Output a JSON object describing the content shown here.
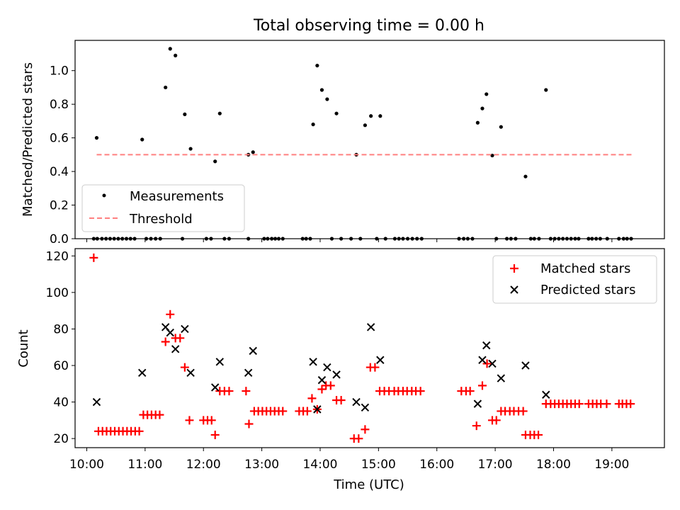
{
  "figure": {
    "title": "Total observing time = 0.00 h"
  },
  "chart_data": [
    {
      "type": "scatter",
      "ylabel": "Matched/Predicted stars",
      "xlim": [
        9.8,
        19.9
      ],
      "ylim": [
        0,
        1.18
      ],
      "yticks": [
        0.0,
        0.2,
        0.4,
        0.6,
        0.8,
        1.0
      ],
      "ytick_labels": [
        "0.0",
        "0.2",
        "0.4",
        "0.6",
        "0.8",
        "1.0"
      ],
      "grid": false,
      "legend": {
        "placement": "lower-left",
        "entries": [
          "Measurements",
          "Threshold"
        ]
      },
      "series": [
        {
          "name": "Measurements",
          "marker": "dot",
          "color": "#000000",
          "points": [
            [
              10.17,
              0.6
            ],
            [
              10.95,
              0.59
            ],
            [
              11.35,
              0.9
            ],
            [
              11.43,
              1.13
            ],
            [
              11.52,
              1.09
            ],
            [
              11.68,
              0.74
            ],
            [
              11.78,
              0.535
            ],
            [
              12.2,
              0.46
            ],
            [
              12.28,
              0.745
            ],
            [
              12.77,
              0.5
            ],
            [
              12.85,
              0.515
            ],
            [
              13.88,
              0.68
            ],
            [
              13.95,
              1.03
            ],
            [
              14.03,
              0.885
            ],
            [
              14.12,
              0.83
            ],
            [
              14.28,
              0.745
            ],
            [
              14.62,
              0.5
            ],
            [
              14.77,
              0.675
            ],
            [
              14.87,
              0.73
            ],
            [
              15.03,
              0.73
            ],
            [
              16.7,
              0.69
            ],
            [
              16.78,
              0.775
            ],
            [
              16.85,
              0.86
            ],
            [
              16.95,
              0.495
            ],
            [
              17.1,
              0.665
            ],
            [
              17.52,
              0.37
            ],
            [
              17.87,
              0.885
            ],
            [
              10.12,
              0
            ],
            [
              10.18,
              0
            ],
            [
              10.26,
              0
            ],
            [
              10.33,
              0
            ],
            [
              10.4,
              0
            ],
            [
              10.47,
              0
            ],
            [
              10.54,
              0
            ],
            [
              10.61,
              0
            ],
            [
              10.68,
              0
            ],
            [
              10.75,
              0
            ],
            [
              10.82,
              0
            ],
            [
              11.02,
              0
            ],
            [
              11.1,
              0
            ],
            [
              11.18,
              0
            ],
            [
              11.26,
              0
            ],
            [
              11.64,
              0
            ],
            [
              12.05,
              0
            ],
            [
              12.13,
              0
            ],
            [
              12.36,
              0
            ],
            [
              12.44,
              0
            ],
            [
              12.77,
              0
            ],
            [
              13.04,
              0
            ],
            [
              13.1,
              0
            ],
            [
              13.17,
              0
            ],
            [
              13.23,
              0
            ],
            [
              13.29,
              0
            ],
            [
              13.36,
              0
            ],
            [
              13.7,
              0
            ],
            [
              13.76,
              0
            ],
            [
              13.83,
              0
            ],
            [
              14.2,
              0
            ],
            [
              14.36,
              0
            ],
            [
              14.53,
              0
            ],
            [
              14.69,
              0
            ],
            [
              14.97,
              0
            ],
            [
              15.12,
              0
            ],
            [
              15.28,
              0
            ],
            [
              15.35,
              0
            ],
            [
              15.42,
              0
            ],
            [
              15.5,
              0
            ],
            [
              15.58,
              0
            ],
            [
              15.66,
              0
            ],
            [
              15.74,
              0
            ],
            [
              16.38,
              0
            ],
            [
              16.46,
              0
            ],
            [
              16.53,
              0
            ],
            [
              16.61,
              0
            ],
            [
              17.02,
              0
            ],
            [
              17.2,
              0
            ],
            [
              17.27,
              0
            ],
            [
              17.35,
              0
            ],
            [
              17.61,
              0
            ],
            [
              17.67,
              0
            ],
            [
              17.75,
              0
            ],
            [
              17.95,
              0
            ],
            [
              18.02,
              0
            ],
            [
              18.09,
              0
            ],
            [
              18.16,
              0
            ],
            [
              18.23,
              0
            ],
            [
              18.3,
              0
            ],
            [
              18.37,
              0
            ],
            [
              18.43,
              0
            ],
            [
              18.6,
              0
            ],
            [
              18.66,
              0
            ],
            [
              18.73,
              0
            ],
            [
              18.8,
              0
            ],
            [
              18.92,
              0
            ],
            [
              19.12,
              0
            ],
            [
              19.2,
              0
            ],
            [
              19.26,
              0
            ],
            [
              19.33,
              0
            ]
          ]
        },
        {
          "name": "Threshold",
          "style": "dashed",
          "color": "#ff8080",
          "points": [
            [
              10.17,
              0.5
            ],
            [
              19.38,
              0.5
            ]
          ]
        }
      ]
    },
    {
      "type": "scatter",
      "xlabel": "Time (UTC)",
      "ylabel": "Count",
      "xlim": [
        9.8,
        19.9
      ],
      "ylim": [
        15,
        124
      ],
      "xticks": [
        10,
        11,
        12,
        13,
        14,
        15,
        16,
        17,
        18,
        19
      ],
      "xtick_labels": [
        "10:00",
        "11:00",
        "12:00",
        "13:00",
        "14:00",
        "15:00",
        "16:00",
        "17:00",
        "18:00",
        "19:00"
      ],
      "yticks": [
        20,
        40,
        60,
        80,
        100,
        120
      ],
      "ytick_labels": [
        "20",
        "40",
        "60",
        "80",
        "100",
        "120"
      ],
      "grid": false,
      "legend": {
        "placement": "top-right",
        "entries": [
          "Matched stars",
          "Predicted stars"
        ]
      },
      "series": [
        {
          "name": "Matched stars",
          "marker": "plus",
          "color": "#ff0000",
          "points": [
            [
              10.12,
              119
            ],
            [
              10.2,
              24
            ],
            [
              10.27,
              24
            ],
            [
              10.34,
              24
            ],
            [
              10.41,
              24
            ],
            [
              10.48,
              24
            ],
            [
              10.55,
              24
            ],
            [
              10.62,
              24
            ],
            [
              10.69,
              24
            ],
            [
              10.76,
              24
            ],
            [
              10.83,
              24
            ],
            [
              10.9,
              24
            ],
            [
              10.97,
              33
            ],
            [
              11.04,
              33
            ],
            [
              11.11,
              33
            ],
            [
              11.18,
              33
            ],
            [
              11.25,
              33
            ],
            [
              11.35,
              73
            ],
            [
              11.43,
              88
            ],
            [
              11.52,
              75
            ],
            [
              11.6,
              75
            ],
            [
              11.68,
              59
            ],
            [
              11.76,
              30
            ],
            [
              12.0,
              30
            ],
            [
              12.07,
              30
            ],
            [
              12.14,
              30
            ],
            [
              12.2,
              22
            ],
            [
              12.28,
              46
            ],
            [
              12.36,
              46
            ],
            [
              12.44,
              46
            ],
            [
              12.73,
              46
            ],
            [
              12.78,
              28
            ],
            [
              12.87,
              35
            ],
            [
              12.94,
              35
            ],
            [
              13.01,
              35
            ],
            [
              13.08,
              35
            ],
            [
              13.15,
              35
            ],
            [
              13.22,
              35
            ],
            [
              13.29,
              35
            ],
            [
              13.36,
              35
            ],
            [
              13.64,
              35
            ],
            [
              13.71,
              35
            ],
            [
              13.78,
              35
            ],
            [
              13.86,
              42
            ],
            [
              13.95,
              36
            ],
            [
              14.03,
              47
            ],
            [
              14.1,
              49
            ],
            [
              14.18,
              49
            ],
            [
              14.28,
              41
            ],
            [
              14.36,
              41
            ],
            [
              14.58,
              20
            ],
            [
              14.66,
              20
            ],
            [
              14.77,
              25
            ],
            [
              14.86,
              59
            ],
            [
              14.94,
              59
            ],
            [
              15.02,
              46
            ],
            [
              15.1,
              46
            ],
            [
              15.18,
              46
            ],
            [
              15.27,
              46
            ],
            [
              15.34,
              46
            ],
            [
              15.42,
              46
            ],
            [
              15.49,
              46
            ],
            [
              15.57,
              46
            ],
            [
              15.64,
              46
            ],
            [
              15.72,
              46
            ],
            [
              16.42,
              46
            ],
            [
              16.5,
              46
            ],
            [
              16.57,
              46
            ],
            [
              16.68,
              27
            ],
            [
              16.78,
              49
            ],
            [
              16.86,
              61
            ],
            [
              16.95,
              30
            ],
            [
              17.02,
              30
            ],
            [
              17.1,
              35
            ],
            [
              17.17,
              35
            ],
            [
              17.25,
              35
            ],
            [
              17.32,
              35
            ],
            [
              17.4,
              35
            ],
            [
              17.48,
              35
            ],
            [
              17.52,
              22
            ],
            [
              17.6,
              22
            ],
            [
              17.67,
              22
            ],
            [
              17.74,
              22
            ],
            [
              17.87,
              39
            ],
            [
              17.95,
              39
            ],
            [
              18.02,
              39
            ],
            [
              18.09,
              39
            ],
            [
              18.16,
              39
            ],
            [
              18.23,
              39
            ],
            [
              18.3,
              39
            ],
            [
              18.37,
              39
            ],
            [
              18.44,
              39
            ],
            [
              18.6,
              39
            ],
            [
              18.67,
              39
            ],
            [
              18.74,
              39
            ],
            [
              18.81,
              39
            ],
            [
              18.91,
              39
            ],
            [
              19.12,
              39
            ],
            [
              19.18,
              39
            ],
            [
              19.25,
              39
            ],
            [
              19.32,
              39
            ]
          ]
        },
        {
          "name": "Predicted stars",
          "marker": "x",
          "color": "#000000",
          "points": [
            [
              10.17,
              40
            ],
            [
              10.95,
              56
            ],
            [
              11.35,
              81
            ],
            [
              11.43,
              78
            ],
            [
              11.52,
              69
            ],
            [
              11.68,
              80
            ],
            [
              11.78,
              56
            ],
            [
              12.2,
              48
            ],
            [
              12.28,
              62
            ],
            [
              12.77,
              56
            ],
            [
              12.85,
              68
            ],
            [
              13.88,
              62
            ],
            [
              13.95,
              36
            ],
            [
              14.03,
              52
            ],
            [
              14.12,
              59
            ],
            [
              14.28,
              55
            ],
            [
              14.62,
              40
            ],
            [
              14.77,
              37
            ],
            [
              14.87,
              81
            ],
            [
              15.03,
              63
            ],
            [
              16.7,
              39
            ],
            [
              16.78,
              63
            ],
            [
              16.85,
              71
            ],
            [
              16.95,
              61
            ],
            [
              17.1,
              53
            ],
            [
              17.52,
              60
            ],
            [
              17.87,
              44
            ]
          ]
        }
      ]
    }
  ]
}
